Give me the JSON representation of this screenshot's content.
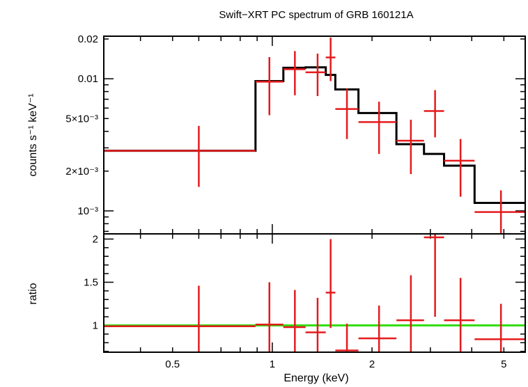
{
  "title": "Swift−XRT PC spectrum of GRB 160121A",
  "chart_data": [
    {
      "panel": "spectrum",
      "type": "line",
      "xscale": "log",
      "yscale": "log",
      "xlim": [
        0.31,
        5.8
      ],
      "ylim": [
        0.00067,
        0.021
      ],
      "ylabel": "counts s⁻¹ keV⁻¹",
      "xlabel": "",
      "ytick_labels": [
        {
          "value": 0.02,
          "label": "0.02"
        },
        {
          "value": 0.01,
          "label": "0.01"
        },
        {
          "value": 0.005,
          "label": "5×10⁻³"
        },
        {
          "value": 0.002,
          "label": "2×10⁻³"
        },
        {
          "value": 0.001,
          "label": "10⁻³"
        }
      ],
      "data": {
        "color": "#e41a1c",
        "points": [
          {
            "x": 0.6,
            "xlo": 0.31,
            "xhi": 0.89,
            "y": 0.00285,
            "ylo": 0.00152,
            "yhi": 0.0044
          },
          {
            "x": 0.98,
            "xlo": 0.89,
            "xhi": 1.08,
            "y": 0.0095,
            "ylo": 0.0053,
            "yhi": 0.0146
          },
          {
            "x": 1.17,
            "xlo": 1.08,
            "xhi": 1.26,
            "y": 0.0118,
            "ylo": 0.0075,
            "yhi": 0.0162
          },
          {
            "x": 1.37,
            "xlo": 1.26,
            "xhi": 1.45,
            "y": 0.0112,
            "ylo": 0.0074,
            "yhi": 0.0155
          },
          {
            "x": 1.5,
            "xlo": 1.45,
            "xhi": 1.55,
            "y": 0.0145,
            "ylo": 0.0096,
            "yhi": 0.0205
          },
          {
            "x": 1.68,
            "xlo": 1.55,
            "xhi": 1.82,
            "y": 0.0059,
            "ylo": 0.0035,
            "yhi": 0.0084
          },
          {
            "x": 2.1,
            "xlo": 1.82,
            "xhi": 2.37,
            "y": 0.0047,
            "ylo": 0.0027,
            "yhi": 0.0067
          },
          {
            "x": 2.62,
            "xlo": 2.37,
            "xhi": 2.87,
            "y": 0.0034,
            "ylo": 0.0019,
            "yhi": 0.0049
          },
          {
            "x": 3.1,
            "xlo": 2.87,
            "xhi": 3.3,
            "y": 0.0057,
            "ylo": 0.0036,
            "yhi": 0.0082
          },
          {
            "x": 3.7,
            "xlo": 3.3,
            "xhi": 4.08,
            "y": 0.0024,
            "ylo": 0.00128,
            "yhi": 0.0035
          },
          {
            "x": 4.9,
            "xlo": 4.08,
            "xhi": 5.8,
            "y": 0.00098,
            "ylo": 0.0006,
            "yhi": 0.00143
          }
        ]
      },
      "model": {
        "color": "#000000",
        "steps": [
          {
            "xlo": 0.31,
            "xhi": 0.89,
            "y": 0.00285
          },
          {
            "xlo": 0.89,
            "xhi": 1.08,
            "y": 0.0096
          },
          {
            "xlo": 1.08,
            "xhi": 1.26,
            "y": 0.0121
          },
          {
            "xlo": 1.26,
            "xhi": 1.45,
            "y": 0.0122
          },
          {
            "xlo": 1.45,
            "xhi": 1.55,
            "y": 0.0107
          },
          {
            "xlo": 1.55,
            "xhi": 1.82,
            "y": 0.0083
          },
          {
            "xlo": 1.82,
            "xhi": 2.37,
            "y": 0.0055
          },
          {
            "xlo": 2.37,
            "xhi": 2.87,
            "y": 0.0032
          },
          {
            "xlo": 2.87,
            "xhi": 3.3,
            "y": 0.0027
          },
          {
            "xlo": 3.3,
            "xhi": 4.08,
            "y": 0.0022
          },
          {
            "xlo": 4.08,
            "xhi": 5.8,
            "y": 0.00115
          }
        ]
      }
    },
    {
      "panel": "ratio",
      "type": "scatter",
      "xscale": "log",
      "yscale": "linear",
      "xlim": [
        0.31,
        5.8
      ],
      "ylim": [
        0.69,
        2.06
      ],
      "ylabel": "ratio",
      "xlabel": "Energy (keV)",
      "ytick_labels": [
        {
          "value": 1,
          "label": "1"
        },
        {
          "value": 1.5,
          "label": "1.5"
        },
        {
          "value": 2,
          "label": "2"
        }
      ],
      "xtick_labels": [
        {
          "value": 0.5,
          "label": "0.5"
        },
        {
          "value": 1,
          "label": "1"
        },
        {
          "value": 2,
          "label": "2"
        },
        {
          "value": 5,
          "label": "5"
        }
      ],
      "reference": {
        "y": 1,
        "color": "#33dd11"
      },
      "data": {
        "color": "#e41a1c",
        "points": [
          {
            "x": 0.6,
            "xlo": 0.31,
            "xhi": 0.89,
            "y": 0.99,
            "ylo": 0.54,
            "yhi": 1.46
          },
          {
            "x": 0.98,
            "xlo": 0.89,
            "xhi": 1.08,
            "y": 1.01,
            "ylo": 0.55,
            "yhi": 1.5
          },
          {
            "x": 1.17,
            "xlo": 1.08,
            "xhi": 1.26,
            "y": 0.98,
            "ylo": 0.62,
            "yhi": 1.41
          },
          {
            "x": 1.37,
            "xlo": 1.26,
            "xhi": 1.45,
            "y": 0.92,
            "ylo": 0.52,
            "yhi": 1.32
          },
          {
            "x": 1.5,
            "xlo": 1.45,
            "xhi": 1.55,
            "y": 1.38,
            "ylo": 0.97,
            "yhi": 2.0
          },
          {
            "x": 1.68,
            "xlo": 1.55,
            "xhi": 1.82,
            "y": 0.71,
            "ylo": 0.42,
            "yhi": 1.02
          },
          {
            "x": 2.1,
            "xlo": 1.82,
            "xhi": 2.37,
            "y": 0.85,
            "ylo": 0.47,
            "yhi": 1.23
          },
          {
            "x": 2.62,
            "xlo": 2.37,
            "xhi": 2.87,
            "y": 1.06,
            "ylo": 0.6,
            "yhi": 1.58
          },
          {
            "x": 3.1,
            "xlo": 2.87,
            "xhi": 3.3,
            "y": 2.02,
            "ylo": 1.1,
            "yhi": 2.06
          },
          {
            "x": 3.7,
            "xlo": 3.3,
            "xhi": 4.08,
            "y": 1.06,
            "ylo": 0.58,
            "yhi": 1.55
          },
          {
            "x": 4.9,
            "xlo": 4.08,
            "xhi": 5.8,
            "y": 0.84,
            "ylo": 0.52,
            "yhi": 1.25
          }
        ]
      }
    }
  ]
}
